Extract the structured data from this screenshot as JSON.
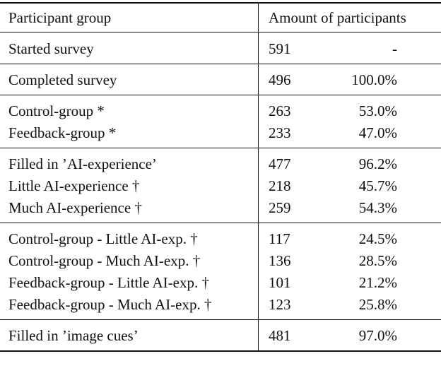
{
  "table": {
    "header": [
      "Participant group",
      "Amount of participants"
    ],
    "groups": [
      [
        [
          "Started survey",
          "591",
          "-"
        ]
      ],
      [
        [
          "Completed survey",
          "496",
          "100.0%"
        ]
      ],
      [
        [
          "Control-group *",
          "263",
          "53.0%"
        ],
        [
          "Feedback-group *",
          "233",
          "47.0%"
        ]
      ],
      [
        [
          "Filled in ’AI-experience’",
          "477",
          "96.2%"
        ],
        [
          "Little AI-experience †",
          "218",
          "45.7%"
        ],
        [
          "Much AI-experience †",
          "259",
          "54.3%"
        ]
      ],
      [
        [
          "Control-group - Little AI-exp. †",
          "117",
          "24.5%"
        ],
        [
          "Control-group - Much AI-exp. †",
          "136",
          "28.5%"
        ],
        [
          "Feedback-group - Little AI-exp. †",
          "101",
          "21.2%"
        ],
        [
          "Feedback-group - Much AI-exp. †",
          "123",
          "25.8%"
        ]
      ],
      [
        [
          "Filled in ’image cues’",
          "481",
          "97.0%"
        ]
      ]
    ]
  }
}
